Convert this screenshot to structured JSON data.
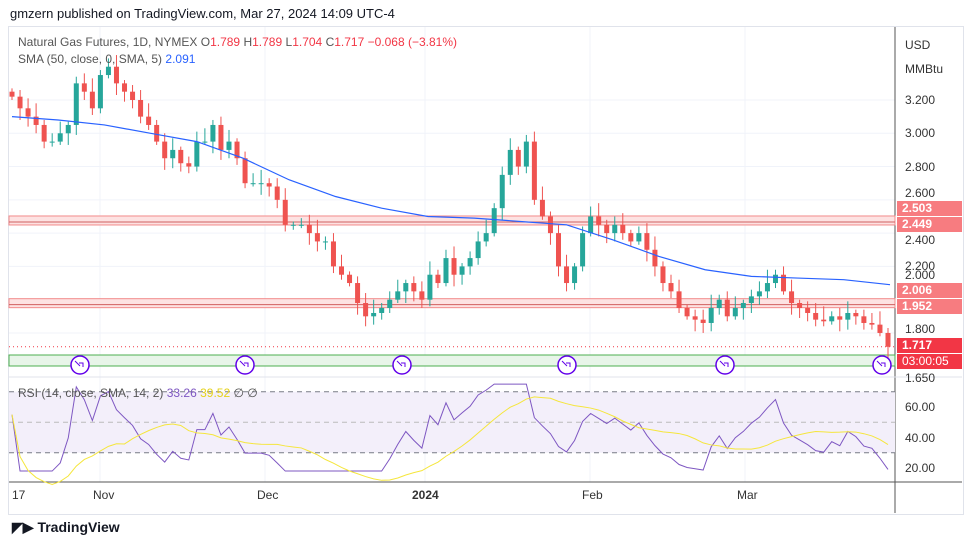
{
  "header": {
    "published": "gmzern published on TradingView.com, Mar 27, 2024 14:09 UTC-4"
  },
  "legend": {
    "symbol": "Natural Gas Futures, 1D, NYMEX",
    "o_label": "O",
    "o": "1.789",
    "h_label": "H",
    "h": "1.789",
    "l_label": "L",
    "l": "1.704",
    "c_label": "C",
    "c": "1.717",
    "change": "−0.068 (−3.81%)",
    "sma_label": "SMA (50, close, 0, SMA, 5)",
    "sma_value": "2.091",
    "rsi_label": "RSI (14, close, SMA, 14, 2)",
    "rsi_value": "33.26",
    "rsi_sma_value": "39.52",
    "rsi_extra1": "∅",
    "rsi_extra2": "∅"
  },
  "axis": {
    "currency": "USD",
    "unit": "MMBtu",
    "price_ticks": [
      "3.200",
      "3.000",
      "2.800",
      "2.600",
      "2.400",
      "2.200",
      "2.000",
      "1.800",
      "1.650"
    ],
    "rsi_ticks": [
      "60.00",
      "40.00",
      "20.00"
    ],
    "x_labels": [
      "17",
      "Nov",
      "Dec",
      "2024",
      "Feb",
      "Mar"
    ]
  },
  "price_tags": {
    "z1_top": "2.503",
    "z1_bot": "2.449",
    "z2_top": "2.006",
    "z2_bot": "1.952",
    "last": "1.717",
    "countdown": "03:00:05"
  },
  "colors": {
    "up": "#26a69a",
    "down": "#ef5350",
    "sma": "#2962ff",
    "rsi": "#7e57c2",
    "rsi_sma": "#f5e63c",
    "zone": "#f7a8a8",
    "support": "#4caf50"
  },
  "footer": {
    "brand": "TradingView"
  },
  "chart_data": {
    "type": "candlestick",
    "closes": [
      3.22,
      3.15,
      3.1,
      3.05,
      2.95,
      2.95,
      3.0,
      3.05,
      3.3,
      3.25,
      3.15,
      3.35,
      3.4,
      3.3,
      3.25,
      3.2,
      3.1,
      3.05,
      2.95,
      2.85,
      2.9,
      2.82,
      2.8,
      2.95,
      2.95,
      3.05,
      2.9,
      2.95,
      2.85,
      2.7,
      2.7,
      2.7,
      2.68,
      2.6,
      2.45,
      2.45,
      2.45,
      2.4,
      2.35,
      2.35,
      2.2,
      2.15,
      2.1,
      1.98,
      1.9,
      1.92,
      1.95,
      2.0,
      2.05,
      2.1,
      2.05,
      2.0,
      2.15,
      2.1,
      2.25,
      2.15,
      2.2,
      2.25,
      2.35,
      2.4,
      2.55,
      2.75,
      2.9,
      2.8,
      2.95,
      2.6,
      2.5,
      2.4,
      2.2,
      2.1,
      2.2,
      2.4,
      2.5,
      2.45,
      2.4,
      2.45,
      2.4,
      2.35,
      2.4,
      2.3,
      2.2,
      2.1,
      2.05,
      1.95,
      1.9,
      1.88,
      1.86,
      1.95,
      2.0,
      1.9,
      1.95,
      1.98,
      2.02,
      2.05,
      2.1,
      2.15,
      2.05,
      1.98,
      1.95,
      1.92,
      1.88,
      1.87,
      1.9,
      1.88,
      1.92,
      1.9,
      1.86,
      1.85,
      1.8,
      1.717
    ],
    "sma": [
      3.1,
      3.08,
      3.05,
      3.0,
      2.95,
      2.85,
      2.72,
      2.62,
      2.55,
      2.5,
      2.49,
      2.47,
      2.45,
      2.36,
      2.26,
      2.18,
      2.14,
      2.13,
      2.12,
      2.09
    ],
    "zones": [
      [
        2.449,
        2.503
      ],
      [
        1.952,
        2.006
      ]
    ],
    "support": 1.66,
    "last": 1.717,
    "ylim": [
      1.6,
      3.3
    ],
    "rsi_bands": [
      30,
      70
    ]
  }
}
